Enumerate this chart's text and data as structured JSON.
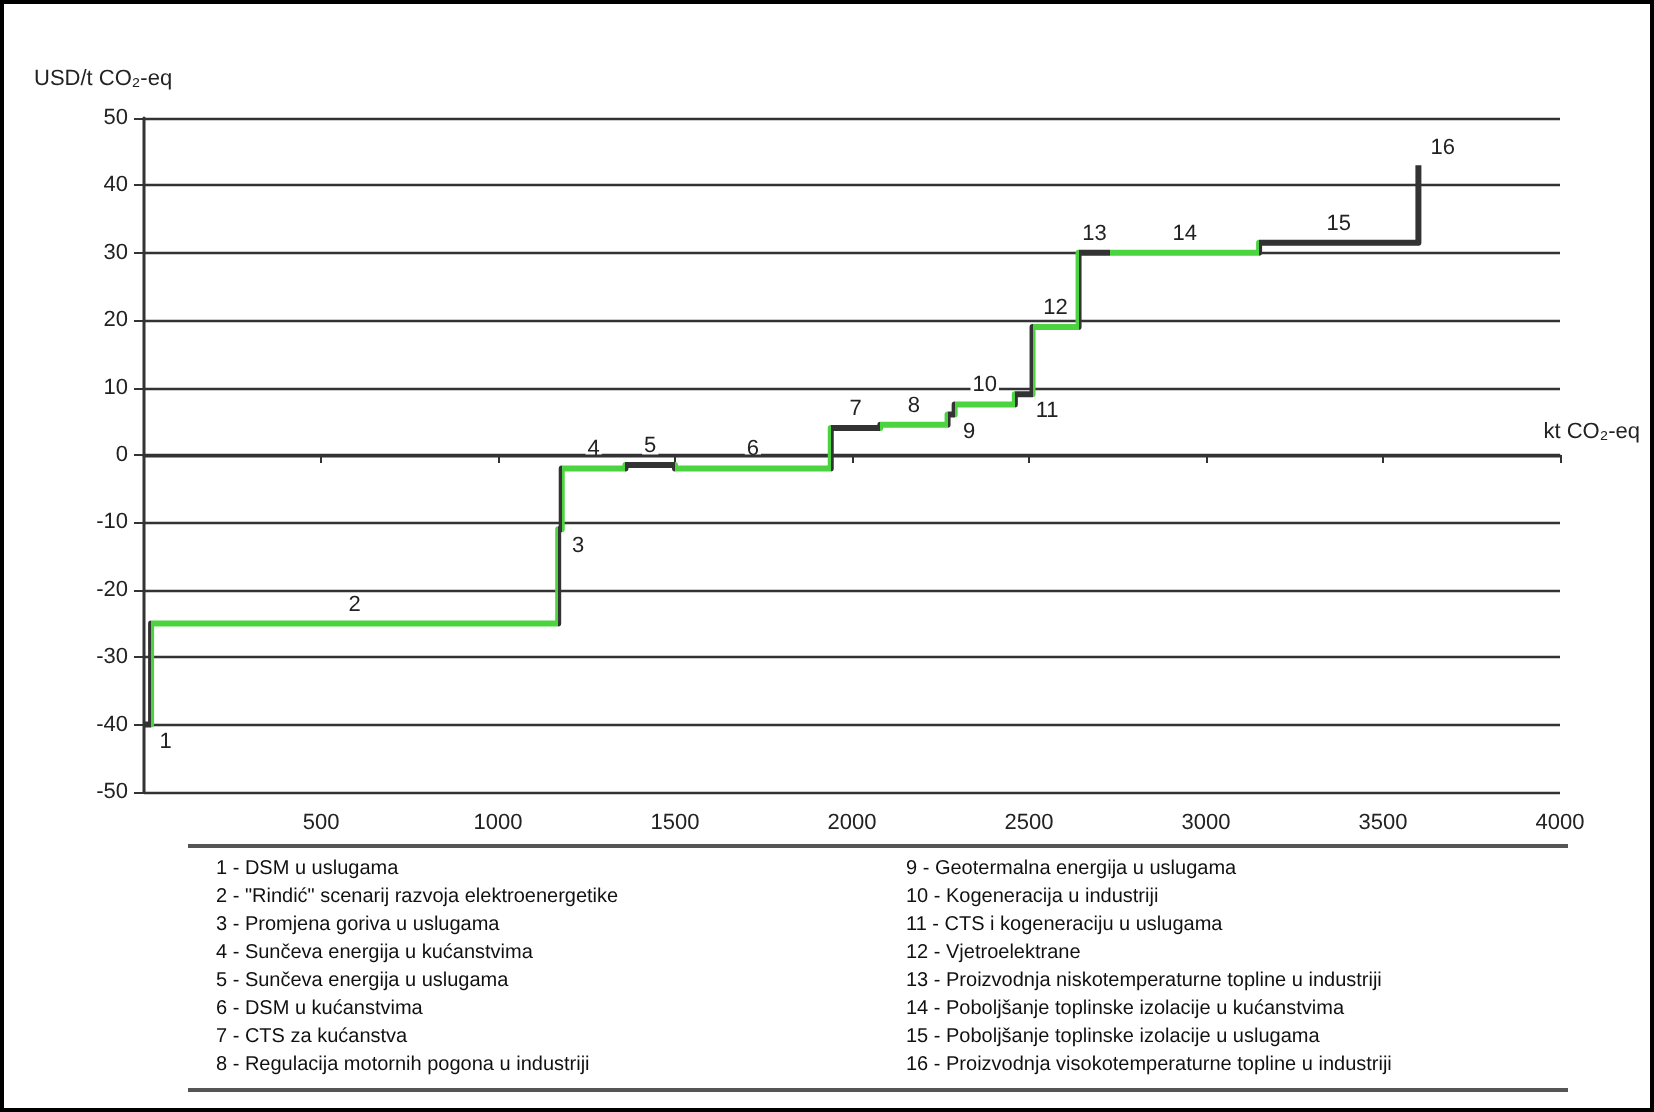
{
  "chart_data": {
    "type": "step",
    "ylabel": "USD/t CO₂-eq",
    "xlabel": "kt CO₂-eq",
    "x": [
      0,
      20,
      1170,
      1180,
      1360,
      1500,
      1940,
      2080,
      2270,
      2290,
      2460,
      2510,
      2640,
      2730,
      3150,
      3600
    ],
    "series": [
      {
        "values": [
          -40,
          -25,
          -11,
          -2,
          -1.5,
          -2,
          4,
          4.5,
          6,
          7.5,
          9,
          19,
          30,
          30,
          31.5,
          43
        ],
        "colors": [
          "#333333",
          "#4cd440",
          "#333333",
          "#4cd440",
          "#333333",
          "#4cd440",
          "#333333",
          "#4cd440",
          "#333333",
          "#4cd440",
          "#333333",
          "#4cd440",
          "#333333",
          "#4cd440",
          "#333333",
          "#333333"
        ]
      }
    ],
    "xlim": [
      0,
      4000
    ],
    "xticks": [
      500,
      1000,
      1500,
      2000,
      2500,
      3000,
      3500,
      4000
    ],
    "ylim": [
      -50,
      50
    ],
    "yticks": [
      -50,
      -40,
      -30,
      -20,
      -10,
      0,
      10,
      20,
      30,
      40,
      50
    ],
    "grid": "y",
    "marker": "none",
    "line_style": "solid",
    "annotations": [
      {
        "text": "1",
        "x": 10,
        "y": -40
      },
      {
        "text": "2",
        "x": 595,
        "y": -25
      },
      {
        "text": "3",
        "x": 1175,
        "y": -11
      },
      {
        "text": "4",
        "x": 1270,
        "y": -2
      },
      {
        "text": "5",
        "x": 1430,
        "y": -1.5
      },
      {
        "text": "6",
        "x": 1720,
        "y": -2
      },
      {
        "text": "7",
        "x": 2010,
        "y": 4
      },
      {
        "text": "8",
        "x": 2175,
        "y": 4.5
      },
      {
        "text": "9",
        "x": 2280,
        "y": 6
      },
      {
        "text": "10",
        "x": 2375,
        "y": 7.5
      },
      {
        "text": "11",
        "x": 2485,
        "y": 9
      },
      {
        "text": "12",
        "x": 2575,
        "y": 19
      },
      {
        "text": "13",
        "x": 2685,
        "y": 30
      },
      {
        "text": "14",
        "x": 2940,
        "y": 30
      },
      {
        "text": "15",
        "x": 3375,
        "y": 31.5
      },
      {
        "text": "16",
        "x": 3600,
        "y": 43
      },
      "1 - DSM u uslugama",
      "2 - \"Rindić\" scenarij razvoja elektroenergetike",
      "3 - Promjena goriva u uslugama",
      "4 - Sunčeva energija u kućanstvima",
      "5 - Sunčeva energija u uslugama",
      "6 - DSM u kućanstvima",
      "7 - CTS za kućanstva",
      "8 - Regulacija motornih pogona u industriji",
      "9 - Geotermalna energija u uslugama",
      "10 - Kogeneracija u industriji",
      "11 - CTS i kogeneraciju u uslugama",
      "12 - Vjetroelektrane",
      "13 - Proizvodnja niskotemperaturne topline u industriji",
      "14 - Poboljšanje toplinske izolacije u kućanstvima",
      "15 - Poboljšanje toplinske izolacije u uslugama",
      "16 - Proizvodnja visokotemperaturne topline u industriji"
    ]
  }
}
